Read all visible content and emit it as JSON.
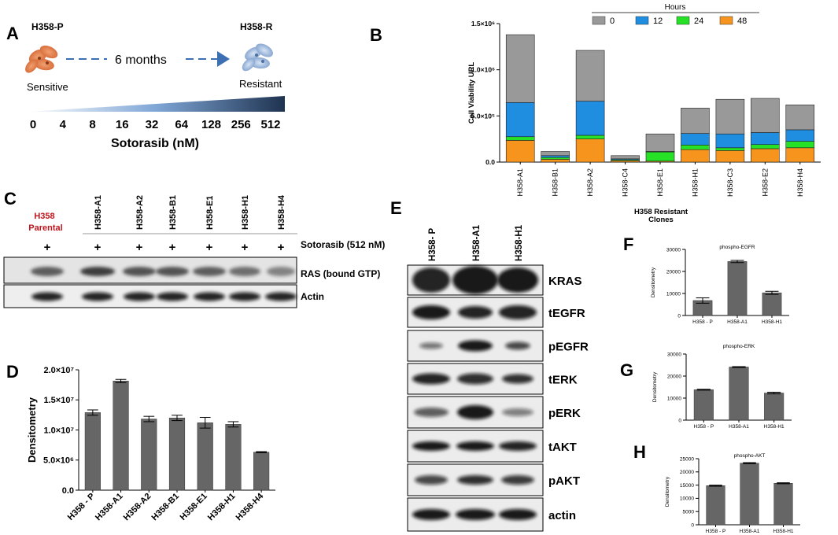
{
  "panels": {
    "A": {
      "letter": "A",
      "left_label": "H358-P",
      "right_label": "H358-R",
      "duration": "6 months",
      "left_caption": "Sensitive",
      "right_caption": "Resistant",
      "doses": [
        "0",
        "4",
        "8",
        "16",
        "32",
        "64",
        "128",
        "256",
        "512"
      ],
      "axis_label": "Sotorasib (nM)"
    },
    "C": {
      "letter": "C",
      "parental_label": "H358 Parental",
      "lane_labels": [
        "H358-A1",
        "H358-A2",
        "H358-B1",
        "H358-E1",
        "H358-H1",
        "H358-H4"
      ],
      "plus": "+",
      "treatment_label": "Sotorasib  (512 nM)",
      "row_labels": [
        "RAS (bound GTP)",
        "Actin"
      ]
    },
    "E": {
      "letter": "E",
      "lane_labels": [
        "H358- P",
        "H358-A1",
        "H358-H1"
      ],
      "row_labels": [
        "KRAS",
        "tEGFR",
        "pEGFR",
        "tERK",
        "pERK",
        "tAKT",
        "pAKT",
        "actin"
      ]
    },
    "B_letter": "B",
    "D_letter": "D",
    "F_letter": "F",
    "G_letter": "G",
    "H_letter": "H"
  },
  "chart_data": [
    {
      "id": "B",
      "type": "bar",
      "stacked": true,
      "legend_title": "Hours",
      "legend_position": "top",
      "categories": [
        "H358-A1",
        "H358-B1",
        "H358-A2",
        "H358-C4",
        "H358-E1",
        "H358-H1",
        "H358-C3",
        "H358-E2",
        "H358-H4"
      ],
      "series": [
        {
          "name": "48",
          "color": "#f7941d",
          "values": [
            235000,
            30000,
            250000,
            15000,
            10000,
            135000,
            125000,
            145000,
            155000
          ]
        },
        {
          "name": "24",
          "color": "#26e126",
          "values": [
            40000,
            20000,
            40000,
            10000,
            100000,
            50000,
            30000,
            45000,
            70000
          ]
        },
        {
          "name": "12",
          "color": "#1f8de0",
          "values": [
            370000,
            20000,
            370000,
            10000,
            5000,
            125000,
            150000,
            130000,
            125000
          ]
        },
        {
          "name": "0",
          "color": "#999999",
          "values": [
            735000,
            45000,
            550000,
            35000,
            190000,
            275000,
            375000,
            370000,
            270000
          ]
        }
      ],
      "legend_order": [
        "0",
        "12",
        "24",
        "48"
      ],
      "yticks": [
        "0.0",
        "5.0×10⁵",
        "1.0×10⁶",
        "1.5×10⁶"
      ],
      "ylim": [
        0,
        1500000
      ],
      "ylabel": "Cell Viability URL",
      "xlabel": "H358 Resistant Clones"
    },
    {
      "id": "D",
      "type": "bar",
      "categories": [
        "H358 - P",
        "H358-A1",
        "H358-A2",
        "H358-B1",
        "H358-E1",
        "H358-H1",
        "H358-H4"
      ],
      "values": [
        14500000,
        20400000,
        13300000,
        13500000,
        12600000,
        12300000,
        7100000
      ],
      "errors": [
        500000,
        300000,
        500000,
        500000,
        1000000,
        500000,
        100000
      ],
      "yticks": [
        "0.0",
        "5.0×10⁶",
        "1.0×10⁷",
        "1.5×10⁷",
        "2.0×10⁷"
      ],
      "ylim": [
        0,
        22500000
      ],
      "ylabel": "Densitometry",
      "color": "#666666"
    },
    {
      "id": "F",
      "type": "bar",
      "title": "phospho-EGFR",
      "categories": [
        "H358 - P",
        "H358-A1",
        "H358-H1"
      ],
      "values": [
        6800,
        24500,
        10300
      ],
      "errors": [
        1200,
        500,
        700
      ],
      "yticks": [
        "0",
        "10000",
        "20000",
        "30000"
      ],
      "ylim": [
        0,
        30000
      ],
      "ylabel": "Densitometry",
      "color": "#666666"
    },
    {
      "id": "G",
      "type": "bar",
      "title": "phospho-ERK",
      "categories": [
        "H358 - P",
        "H358-A1",
        "H358-H1"
      ],
      "values": [
        13800,
        24100,
        12300
      ],
      "errors": [
        200,
        200,
        400
      ],
      "yticks": [
        "0",
        "10000",
        "20000",
        "30000"
      ],
      "ylim": [
        0,
        30000
      ],
      "ylabel": "Densitometry",
      "color": "#666666"
    },
    {
      "id": "H",
      "type": "bar",
      "title": "phospho-AKT",
      "categories": [
        "H358 - P",
        "H358-A1",
        "H358-H1"
      ],
      "values": [
        14800,
        23300,
        15700
      ],
      "errors": [
        200,
        200,
        200
      ],
      "yticks": [
        "0",
        "5000",
        "10000",
        "15000",
        "20000",
        "25000"
      ],
      "ylim": [
        0,
        25000
      ],
      "ylabel": "Densitometry",
      "color": "#666666"
    }
  ]
}
